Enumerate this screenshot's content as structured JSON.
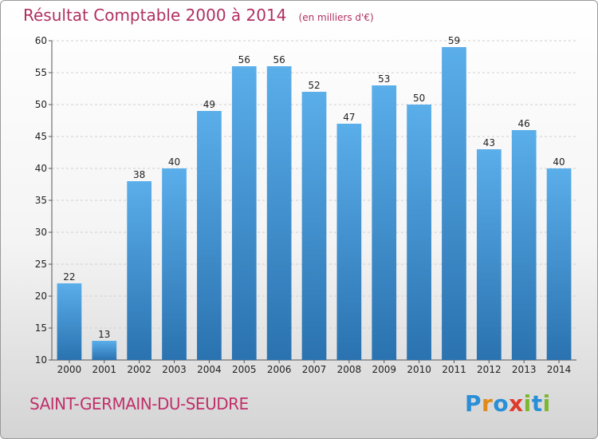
{
  "header": {
    "title": "Résultat Comptable 2000 à 2014",
    "subtitle": "(en milliers d'€)"
  },
  "footer": {
    "commune": "SAINT-GERMAIN-DU-SEUDRE",
    "brand_letters": [
      {
        "ch": "P",
        "color": "#2a8fd6"
      },
      {
        "ch": "r",
        "color": "#e08a1a"
      },
      {
        "ch": "o",
        "color": "#2a8fd6"
      },
      {
        "ch": "x",
        "color": "#e03a2a"
      },
      {
        "ch": "i",
        "color": "#7cb82f"
      },
      {
        "ch": "t",
        "color": "#2a8fd6"
      },
      {
        "ch": "i",
        "color": "#7cb82f"
      }
    ]
  },
  "colors": {
    "bar_top": "#5aaeea",
    "bar_bottom": "#2a72b0",
    "grid": "#d0d0d0",
    "axis": "#555555"
  },
  "chart_data": {
    "type": "bar",
    "categories": [
      "2000",
      "2001",
      "2002",
      "2003",
      "2004",
      "2005",
      "2006",
      "2007",
      "2008",
      "2009",
      "2010",
      "2011",
      "2012",
      "2013",
      "2014"
    ],
    "values": [
      22,
      13,
      38,
      40,
      49,
      56,
      56,
      52,
      47,
      53,
      50,
      59,
      43,
      46,
      40
    ],
    "title": "Résultat Comptable 2000 à 2014",
    "subtitle": "(en milliers d'€)",
    "ylim": [
      10,
      60
    ],
    "yticks": [
      10,
      15,
      20,
      25,
      30,
      35,
      40,
      45,
      50,
      55,
      60
    ],
    "grid": "horizontal dashed",
    "show_value_labels": true
  }
}
